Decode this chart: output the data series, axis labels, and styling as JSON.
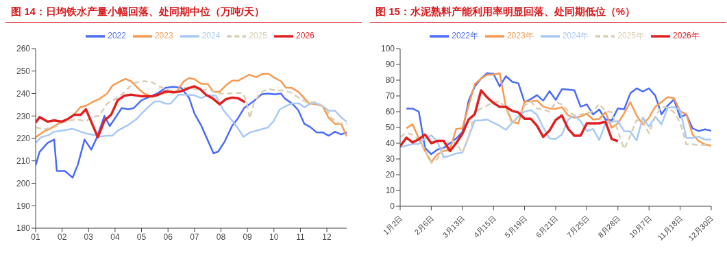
{
  "chart_data": [
    {
      "type": "line",
      "title": "图 14：日均铁水产量小幅回落、处同期中位（万吨/天）",
      "xlim": [
        1,
        12.75
      ],
      "xticks": [
        {
          "value": 1,
          "label": "01"
        },
        {
          "value": 2,
          "label": "02"
        },
        {
          "value": 3,
          "label": "03"
        },
        {
          "value": 4,
          "label": "04"
        },
        {
          "value": 5,
          "label": "05"
        },
        {
          "value": 6,
          "label": "06"
        },
        {
          "value": 7,
          "label": "07"
        },
        {
          "value": 8,
          "label": "08"
        },
        {
          "value": 9,
          "label": "09"
        },
        {
          "value": 10,
          "label": "10"
        },
        {
          "value": 11,
          "label": "11"
        },
        {
          "value": 12,
          "label": "12"
        }
      ],
      "ylim": [
        180,
        260
      ],
      "yticks": [
        180,
        190,
        200,
        210,
        220,
        230,
        240,
        250,
        260
      ],
      "grid": false,
      "legend": "top",
      "marker": "none",
      "series": [
        {
          "name": "2022",
          "color": "#4a6cf7",
          "x": [
            1,
            1.15,
            1.45,
            1.7,
            1.8,
            2.1,
            2.4,
            2.6,
            2.85,
            3.1,
            3.3,
            3.6,
            3.8,
            4.0,
            4.25,
            4.5,
            4.7,
            5.0,
            5.3,
            5.6,
            5.9,
            6.2,
            6.5,
            6.8,
            7.0,
            7.26,
            7.5,
            7.72,
            7.9,
            8.14,
            8.42,
            8.65,
            8.88,
            9.25,
            9.53,
            9.76,
            10.04,
            10.27,
            10.4,
            10.68,
            10.92,
            11.15,
            11.38,
            11.61,
            11.84,
            12.07,
            12.3,
            12.54,
            12.75
          ],
          "values": [
            208,
            214,
            218,
            219.5,
            205.5,
            205.5,
            202.5,
            208.5,
            219.5,
            215,
            220,
            230,
            225.5,
            229,
            233.5,
            233,
            233.5,
            237,
            238.5,
            240,
            242.5,
            243,
            242.5,
            238,
            231,
            225.6,
            219.2,
            213.3,
            214.2,
            218.6,
            225.6,
            229.1,
            233.6,
            236.7,
            239.6,
            240,
            239.6,
            240,
            237.9,
            235.6,
            232.6,
            226.5,
            225,
            222.7,
            222.7,
            221.2,
            223,
            221.8,
            222.7
          ]
        },
        {
          "name": "2023",
          "color": "#f79a50",
          "x": [
            1,
            1.3,
            1.5,
            2.0,
            2.4,
            2.7,
            2.9,
            3.2,
            3.4,
            3.7,
            3.9,
            4.2,
            4.4,
            4.6,
            4.9,
            5.1,
            5.4,
            5.8,
            6.1,
            6.3,
            6.6,
            6.8,
            7.0,
            7.26,
            7.5,
            7.72,
            7.95,
            8.19,
            8.42,
            8.65,
            9.06,
            9.34,
            9.57,
            9.8,
            10.04,
            10.27,
            10.45,
            10.68,
            10.92,
            11.15,
            11.33,
            11.61,
            11.84,
            12.07,
            12.3,
            12.54,
            12.75
          ],
          "values": [
            220.5,
            223,
            224,
            227.5,
            230,
            234,
            234.5,
            236.5,
            237.5,
            240,
            243.5,
            245.5,
            246.5,
            245.5,
            242,
            240,
            238.5,
            240,
            241,
            240.5,
            245.5,
            246.9,
            246.4,
            244.3,
            244.3,
            240.8,
            240.8,
            243.7,
            245.7,
            245.7,
            248.4,
            247.3,
            248.8,
            248.8,
            246.9,
            245.5,
            242.6,
            242.5,
            240.8,
            237.9,
            235.6,
            235.2,
            234.4,
            229.1,
            226.5,
            226.5,
            220.9
          ]
        },
        {
          "name": "2024",
          "color": "#a8c8f5",
          "x": [
            1,
            1.2,
            1.5,
            1.7,
            2.0,
            2.4,
            2.7,
            2.9,
            3.2,
            3.4,
            3.7,
            3.9,
            4.1,
            4.5,
            4.8,
            5.0,
            5.3,
            5.5,
            5.7,
            5.9,
            6.1,
            6.4,
            6.7,
            7.0,
            7.26,
            7.5,
            7.81,
            8.09,
            8.42,
            8.65,
            8.85,
            9.1,
            9.38,
            9.76,
            9.99,
            10.22,
            10.45,
            10.68,
            10.96,
            11.15,
            11.38,
            11.61,
            11.84,
            12.07,
            12.3,
            12.54,
            12.75
          ],
          "values": [
            218,
            220.5,
            221.5,
            223,
            223.5,
            224.3,
            223,
            222.2,
            221.5,
            220.8,
            221.2,
            221.2,
            223.5,
            226,
            228.5,
            231,
            234.5,
            236.5,
            236.5,
            235.5,
            235.5,
            239.5,
            239.5,
            239.2,
            238,
            239.2,
            239,
            232.6,
            228,
            224.4,
            220.7,
            222.7,
            223.6,
            224.8,
            227.7,
            232.9,
            234.4,
            235.6,
            235.6,
            233.8,
            235.6,
            235.6,
            234.4,
            232.4,
            232.4,
            229.4,
            227.4
          ]
        },
        {
          "name": "2025",
          "color": "#d9cdb4",
          "line_style": "dashed",
          "x": [
            1,
            1.3,
            1.7,
            2.0,
            2.3,
            2.6,
            2.9,
            3.1,
            3.4,
            3.7,
            4.0,
            4.3,
            4.6,
            4.8,
            5.1,
            5.4,
            5.7,
            6.0,
            6.3,
            6.61,
            7.0,
            7.26,
            7.54,
            7.81,
            8.14,
            8.46,
            8.83,
            8.97,
            9.09,
            9.25,
            9.48,
            9.76,
            10.08,
            10.4,
            10.68,
            10.96,
            11.24,
            11.61,
            11.93,
            12.17,
            12.44,
            12.75
          ],
          "values": [
            225,
            224,
            225,
            227,
            228,
            228.5,
            227.5,
            229.5,
            230,
            235.5,
            237.5,
            240,
            243.5,
            245,
            245.5,
            245,
            243,
            241.5,
            241,
            242.6,
            242,
            241.4,
            242,
            240.2,
            239.9,
            240.2,
            240.2,
            236.1,
            228.9,
            236.1,
            240.2,
            242,
            241.4,
            241.4,
            240.2,
            237.9,
            236.1,
            236.1,
            233.8,
            229.1,
            226.8,
            226.5
          ]
        },
        {
          "name": "2026",
          "color": "#e02020",
          "x": [
            1,
            1.15,
            1.45,
            1.7,
            2.0,
            2.2,
            2.45,
            2.7,
            2.9,
            3.35,
            3.6,
            3.85,
            4.1,
            4.35,
            4.6,
            5.0,
            5.4,
            5.6,
            5.9,
            6.2,
            6.5,
            6.8,
            7.0,
            7.21,
            7.44,
            7.68,
            7.95,
            8.19,
            8.42,
            8.65,
            8.91
          ],
          "values": [
            227,
            229.5,
            227.5,
            228,
            227.5,
            228.5,
            230.5,
            230.5,
            233,
            220.5,
            228,
            230.5,
            237,
            239,
            239.5,
            238.8,
            238.8,
            239.3,
            241,
            240.5,
            241,
            242.5,
            243.2,
            242,
            239.4,
            237.9,
            235.2,
            237.5,
            238.2,
            237.9,
            236.1
          ]
        }
      ]
    },
    {
      "type": "line",
      "title": "图 15：水泥熟料产能利用率明显回落、处同期低位（%）",
      "categories": [
        "1月2日",
        null,
        null,
        null,
        null,
        "2月6日",
        null,
        null,
        null,
        null,
        "3月13日",
        null,
        null,
        null,
        null,
        "4月15日",
        null,
        null,
        null,
        null,
        "5月19日",
        null,
        null,
        null,
        null,
        "6月21日",
        null,
        null,
        null,
        null,
        "7月25日",
        null,
        null,
        null,
        null,
        "8月28日",
        null,
        null,
        null,
        null,
        "10月7日",
        null,
        null,
        null,
        null,
        "11月18日",
        null,
        null,
        null,
        null,
        "12月30日"
      ],
      "ylim": [
        0,
        100
      ],
      "yticks": [
        0,
        10,
        20,
        30,
        40,
        50,
        60,
        70,
        80,
        90,
        100
      ],
      "grid": false,
      "legend": "top",
      "marker": "none",
      "series": [
        {
          "name": "2022年",
          "color": "#4a6cf7",
          "values": [
            null,
            62,
            62,
            60,
            37,
            33,
            36,
            37,
            40,
            43,
            47,
            67,
            76,
            81,
            84.5,
            84,
            76,
            82.5,
            79,
            78,
            66,
            68,
            70.5,
            67,
            73,
            67.5,
            74.3,
            74,
            73.6,
            63.2,
            64.6,
            58.3,
            61.4,
            55,
            54.5,
            62.1,
            61.5,
            71.7,
            74.8,
            72.8,
            74.8,
            70.3,
            58.3,
            63.9,
            67.8,
            56.4,
            58.3,
            49.4,
            47.7,
            48.8,
            47.9
          ]
        },
        {
          "name": "2023年",
          "color": "#f79a50",
          "values": [
            null,
            49.5,
            52,
            43,
            35,
            28,
            33,
            35,
            36,
            49,
            49.5,
            64,
            77.5,
            81,
            83.5,
            83.5,
            84.5,
            63,
            53.5,
            52.5,
            66.5,
            66.5,
            67,
            63.2,
            62,
            61.8,
            62.8,
            57.6,
            56.2,
            57,
            58.7,
            55,
            55.4,
            59.7,
            49.8,
            52.6,
            59,
            66.1,
            57.6,
            51.9,
            56.2,
            63.2,
            66.1,
            69.2,
            68.6,
            60.4,
            58.3,
            45.5,
            41.3,
            39.2,
            38.5
          ]
        },
        {
          "name": "2024年",
          "color": "#a8c8f5",
          "values": [
            37.5,
            38.5,
            39.5,
            39.5,
            43,
            45,
            41,
            31,
            32,
            33.5,
            34,
            44,
            54.5,
            54.5,
            55,
            53,
            51,
            48.5,
            53,
            57,
            60,
            61,
            58,
            50,
            43,
            42.7,
            45.5,
            55,
            57.6,
            54,
            47.7,
            49.1,
            42,
            52.6,
            53.6,
            54,
            47.7,
            47.4,
            41.7,
            56.2,
            50.5,
            56.9,
            51.9,
            62.5,
            62.9,
            61.1,
            43.4,
            43.4,
            44.1,
            42.3,
            42.3
          ]
        },
        {
          "name": "2025年",
          "color": "#d9cdb4",
          "line_style": "dashed",
          "values": [
            44,
            46.5,
            45.5,
            42,
            36,
            27.5,
            30,
            38,
            42,
            40,
            34,
            44,
            60,
            62,
            64,
            66,
            66.5,
            62,
            52,
            57,
            64,
            66.5,
            62,
            61.5,
            60,
            66.1,
            64.6,
            60.4,
            57.6,
            58.3,
            58.7,
            60.4,
            64.9,
            60.4,
            59.7,
            47.7,
            36.4,
            44.8,
            54.7,
            53.6,
            46.3,
            56.9,
            63.2,
            62.5,
            59.7,
            53.3,
            39.2,
            39.2,
            38.9,
            38.9,
            37.8
          ]
        },
        {
          "name": "2026年",
          "color": "#e02020",
          "values": [
            38,
            43.5,
            40.5,
            42.5,
            45.5,
            40,
            41.5,
            41.5,
            35,
            40,
            46,
            55,
            58.5,
            73.5,
            69,
            65.5,
            63,
            63,
            60.5,
            59.5,
            55.5,
            55.5,
            51,
            44,
            48,
            54.7,
            57.6,
            49.1,
            44.8,
            44.8,
            52.6,
            52.6,
            52.6,
            53.6,
            42.7,
            41.3,
            null,
            null,
            null,
            null,
            null,
            null,
            null,
            null,
            null,
            null,
            null,
            null,
            null,
            null,
            null
          ]
        }
      ]
    }
  ]
}
